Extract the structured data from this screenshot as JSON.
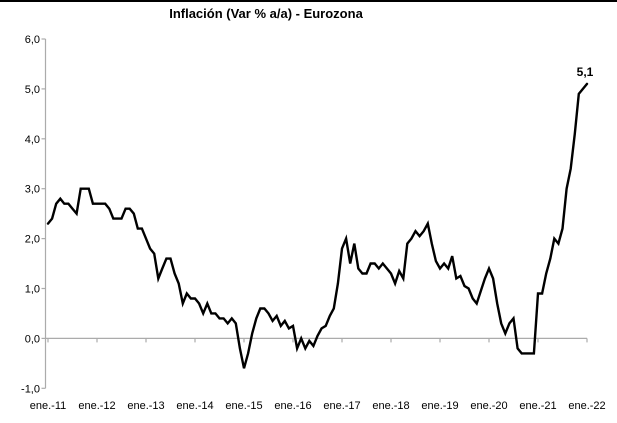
{
  "chart_data": {
    "type": "line",
    "title": "Inflación (Var % a/a) - Eurozona",
    "xlabel": "",
    "ylabel": "",
    "ylim": [
      -1.0,
      6.0
    ],
    "y_tick_step": 1.0,
    "y_tick_labels": [
      "6,0",
      "5,0",
      "4,0",
      "3,0",
      "2,0",
      "1,0",
      "0,0",
      "-1,0"
    ],
    "x_tick_labels": [
      "ene.-11",
      "ene.-12",
      "ene.-13",
      "ene.-14",
      "ene.-15",
      "ene.-16",
      "ene.-17",
      "ene.-18",
      "ene.-19",
      "ene.-20",
      "ene.-21",
      "ene.-22"
    ],
    "x_frequency": "monthly",
    "x_start_label": "ene.-11",
    "x_end_label": "ene.-22",
    "grid": "zero-line-only",
    "legend": "none",
    "annotation_label": "5,1",
    "series": [
      {
        "name": "Inflación Eurozona (Var % a/a)",
        "values": [
          2.3,
          2.4,
          2.7,
          2.8,
          2.7,
          2.7,
          2.6,
          2.5,
          3.0,
          3.0,
          3.0,
          2.7,
          2.7,
          2.7,
          2.7,
          2.6,
          2.4,
          2.4,
          2.4,
          2.6,
          2.6,
          2.5,
          2.2,
          2.2,
          2.0,
          1.8,
          1.7,
          1.2,
          1.4,
          1.6,
          1.6,
          1.3,
          1.1,
          0.7,
          0.9,
          0.8,
          0.8,
          0.7,
          0.5,
          0.7,
          0.5,
          0.5,
          0.4,
          0.4,
          0.3,
          0.4,
          0.3,
          -0.2,
          -0.6,
          -0.3,
          0.1,
          0.4,
          0.6,
          0.6,
          0.5,
          0.35,
          0.45,
          0.25,
          0.35,
          0.2,
          0.25,
          -0.2,
          0.0,
          -0.2,
          -0.05,
          -0.15,
          0.05,
          0.2,
          0.25,
          0.45,
          0.6,
          1.1,
          1.8,
          2.0,
          1.5,
          1.9,
          1.4,
          1.3,
          1.3,
          1.5,
          1.5,
          1.4,
          1.5,
          1.4,
          1.3,
          1.1,
          1.35,
          1.2,
          1.9,
          2.0,
          2.15,
          2.05,
          2.15,
          2.3,
          1.9,
          1.55,
          1.4,
          1.5,
          1.4,
          1.65,
          1.2,
          1.25,
          1.05,
          1.0,
          0.8,
          0.7,
          0.95,
          1.2,
          1.4,
          1.2,
          0.7,
          0.3,
          0.1,
          0.3,
          0.4,
          -0.2,
          -0.3,
          -0.3,
          -0.3,
          -0.3,
          0.9,
          0.9,
          1.3,
          1.6,
          2.0,
          1.9,
          2.2,
          3.0,
          3.4,
          4.1,
          4.9,
          5.0,
          5.1
        ]
      }
    ],
    "colors": {
      "line": "#000000",
      "axis": "#ababab",
      "text": "#000000",
      "background": "#ffffff",
      "top_border": "#000000"
    }
  }
}
